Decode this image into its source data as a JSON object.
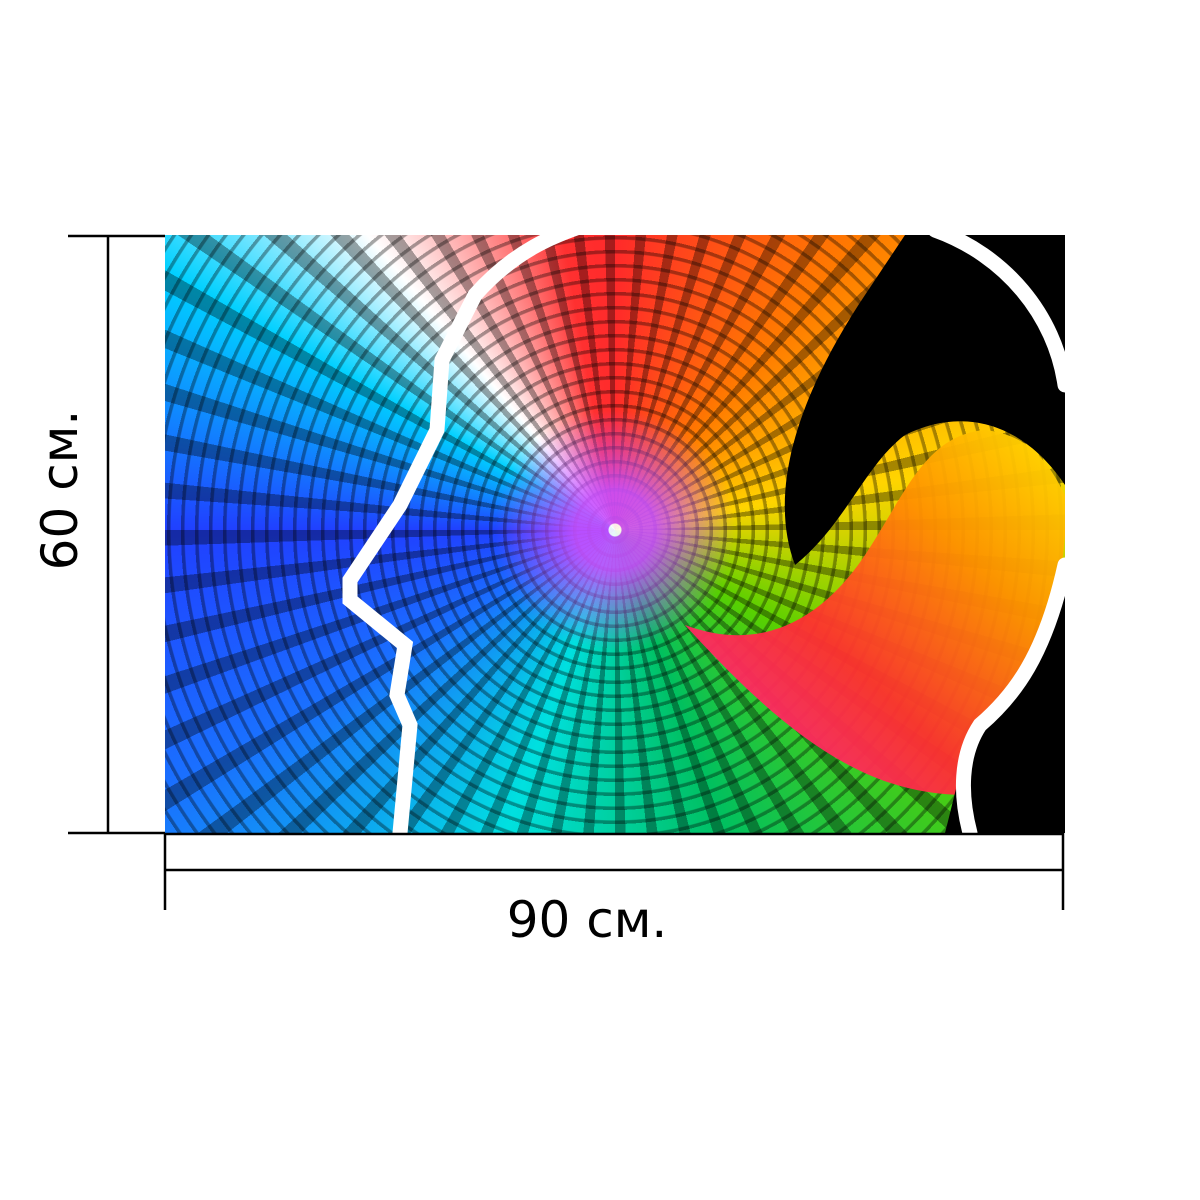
{
  "dimensions": {
    "height_label": "60 см.",
    "width_label": "90 см."
  }
}
